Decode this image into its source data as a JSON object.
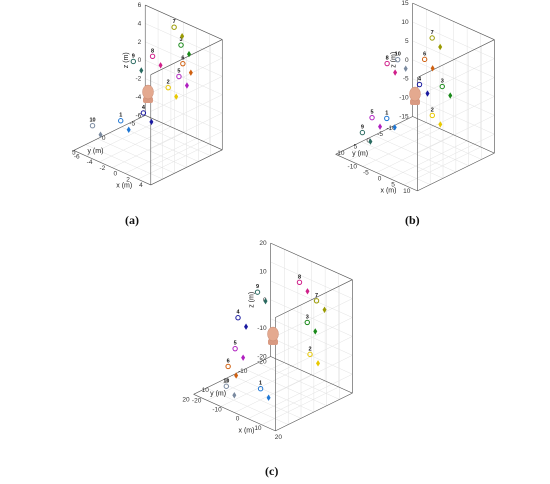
{
  "chart_data": [
    {
      "type": "scatter",
      "label": "(a)",
      "xlabel": "x (m)",
      "ylabel": "y (m)",
      "zlabel": "z (m)",
      "xlim": [
        -6,
        6
      ],
      "ylim": [
        -6,
        6
      ],
      "zlim": [
        -6,
        6
      ],
      "xticks": [
        "-6",
        "-4",
        "-2",
        "0",
        "2",
        "4"
      ],
      "yticks": [
        "-5",
        "0",
        "5"
      ],
      "zticks": [
        "-6",
        "-4",
        "-2",
        "0",
        "2",
        "4",
        "6"
      ],
      "grid": true,
      "points": [
        {
          "name": "1",
          "marker": "circle",
          "color": "#1f77d4",
          "x": -1,
          "y": 3.5,
          "z": -2
        },
        {
          "name": "2",
          "marker": "circle",
          "color": "#e8c800",
          "x": 5,
          "y": 2,
          "z": 3
        },
        {
          "name": "3",
          "marker": "circle",
          "color": "#1a8a1a",
          "x": 0.5,
          "y": -5,
          "z": 4
        },
        {
          "name": "4",
          "marker": "circle",
          "color": "#1a1aa0",
          "x": -3.5,
          "y": -3,
          "z": -4
        },
        {
          "name": "5",
          "marker": "circle",
          "color": "#b020c0",
          "x": 2.5,
          "y": -2.5,
          "z": 2
        },
        {
          "name": "6",
          "marker": "circle",
          "color": "#d06010",
          "x": 4.5,
          "y": -1,
          "z": 4.5
        },
        {
          "name": "7",
          "marker": "circle",
          "color": "#9a9a00",
          "x": -1.5,
          "y": -6,
          "z": 5
        },
        {
          "name": "8",
          "marker": "circle",
          "color": "#d0208a",
          "x": -3,
          "y": -4,
          "z": 2
        },
        {
          "name": "9",
          "marker": "circle",
          "color": "#2a6a60",
          "x": -6,
          "y": -4,
          "z": 0.5
        },
        {
          "name": "10",
          "marker": "circle",
          "color": "#7a8aa0",
          "x": -4,
          "y": 5,
          "z": -3
        }
      ]
    },
    {
      "type": "scatter",
      "label": "(b)",
      "xlabel": "x (m)",
      "ylabel": "y (m)",
      "zlabel": "z (m)",
      "xlim": [
        -15,
        15
      ],
      "ylim": [
        -15,
        15
      ],
      "zlim": [
        -15,
        15
      ],
      "xticks": [
        "-10",
        "-5",
        "0",
        "5",
        "10"
      ],
      "yticks": [
        "-10",
        "-5",
        "0",
        "5",
        "10"
      ],
      "zticks": [
        "-15",
        "-10",
        "-5",
        "0",
        "5",
        "10",
        "15"
      ],
      "grid": true,
      "points": [
        {
          "name": "1",
          "marker": "circle",
          "color": "#1f77d4",
          "x": 0,
          "y": 11,
          "z": -2
        },
        {
          "name": "2",
          "marker": "circle",
          "color": "#e8c800",
          "x": 12,
          "y": 6,
          "z": 1
        },
        {
          "name": "3",
          "marker": "circle",
          "color": "#1a8a1a",
          "x": 10,
          "y": 0,
          "z": 6
        },
        {
          "name": "4",
          "marker": "circle",
          "color": "#1a1aa0",
          "x": -4,
          "y": -6,
          "z": 0
        },
        {
          "name": "5",
          "marker": "circle",
          "color": "#b020c0",
          "x": -12,
          "y": 4,
          "z": -8
        },
        {
          "name": "6",
          "marker": "circle",
          "color": "#d06010",
          "x": -4,
          "y": -8,
          "z": 6
        },
        {
          "name": "7",
          "marker": "circle",
          "color": "#9a9a00",
          "x": -5,
          "y": -12,
          "z": 10
        },
        {
          "name": "8",
          "marker": "circle",
          "color": "#d0208a",
          "x": -14,
          "y": -4,
          "z": 3
        },
        {
          "name": "9",
          "marker": "circle",
          "color": "#2a6a60",
          "x": -8,
          "y": 12,
          "z": -8
        },
        {
          "name": "10",
          "marker": "circle",
          "color": "#7a8aa0",
          "x": -12,
          "y": -6,
          "z": 4
        }
      ]
    },
    {
      "type": "scatter",
      "label": "(c)",
      "xlabel": "x (m)",
      "ylabel": "y (m)",
      "zlabel": "z (m)",
      "xlim": [
        -20,
        20
      ],
      "ylim": [
        -20,
        20
      ],
      "zlim": [
        -20,
        20
      ],
      "xticks": [
        "-20",
        "-10",
        "0",
        "10",
        "20"
      ],
      "yticks": [
        "-20",
        "-10",
        "0",
        "10",
        "20"
      ],
      "zticks": [
        "-20",
        "-10",
        "0",
        "10",
        "20"
      ],
      "grid": true,
      "points": [
        {
          "name": "1",
          "marker": "circle",
          "color": "#1f77d4",
          "x": 9,
          "y": 16,
          "z": -10
        },
        {
          "name": "2",
          "marker": "circle",
          "color": "#e8c800",
          "x": 20,
          "y": 2,
          "z": 1
        },
        {
          "name": "3",
          "marker": "circle",
          "color": "#1a8a1a",
          "x": 13,
          "y": -4,
          "z": 8
        },
        {
          "name": "4",
          "marker": "circle",
          "color": "#1a1aa0",
          "x": -19,
          "y": -2,
          "z": 0
        },
        {
          "name": "5",
          "marker": "circle",
          "color": "#b020c0",
          "x": -11,
          "y": 8,
          "z": -5
        },
        {
          "name": "6",
          "marker": "circle",
          "color": "#d06010",
          "x": -5,
          "y": 18,
          "z": -6
        },
        {
          "name": "7",
          "marker": "circle",
          "color": "#9a9a00",
          "x": 10,
          "y": -12,
          "z": 12
        },
        {
          "name": "8",
          "marker": "circle",
          "color": "#d0208a",
          "x": -4,
          "y": -18,
          "z": 12
        },
        {
          "name": "9",
          "marker": "circle",
          "color": "#2a6a60",
          "x": -17,
          "y": -10,
          "z": 7
        },
        {
          "name": "10",
          "marker": "circle",
          "color": "#7a8aa0",
          "x": -4,
          "y": 20,
          "z": -12
        }
      ]
    }
  ]
}
